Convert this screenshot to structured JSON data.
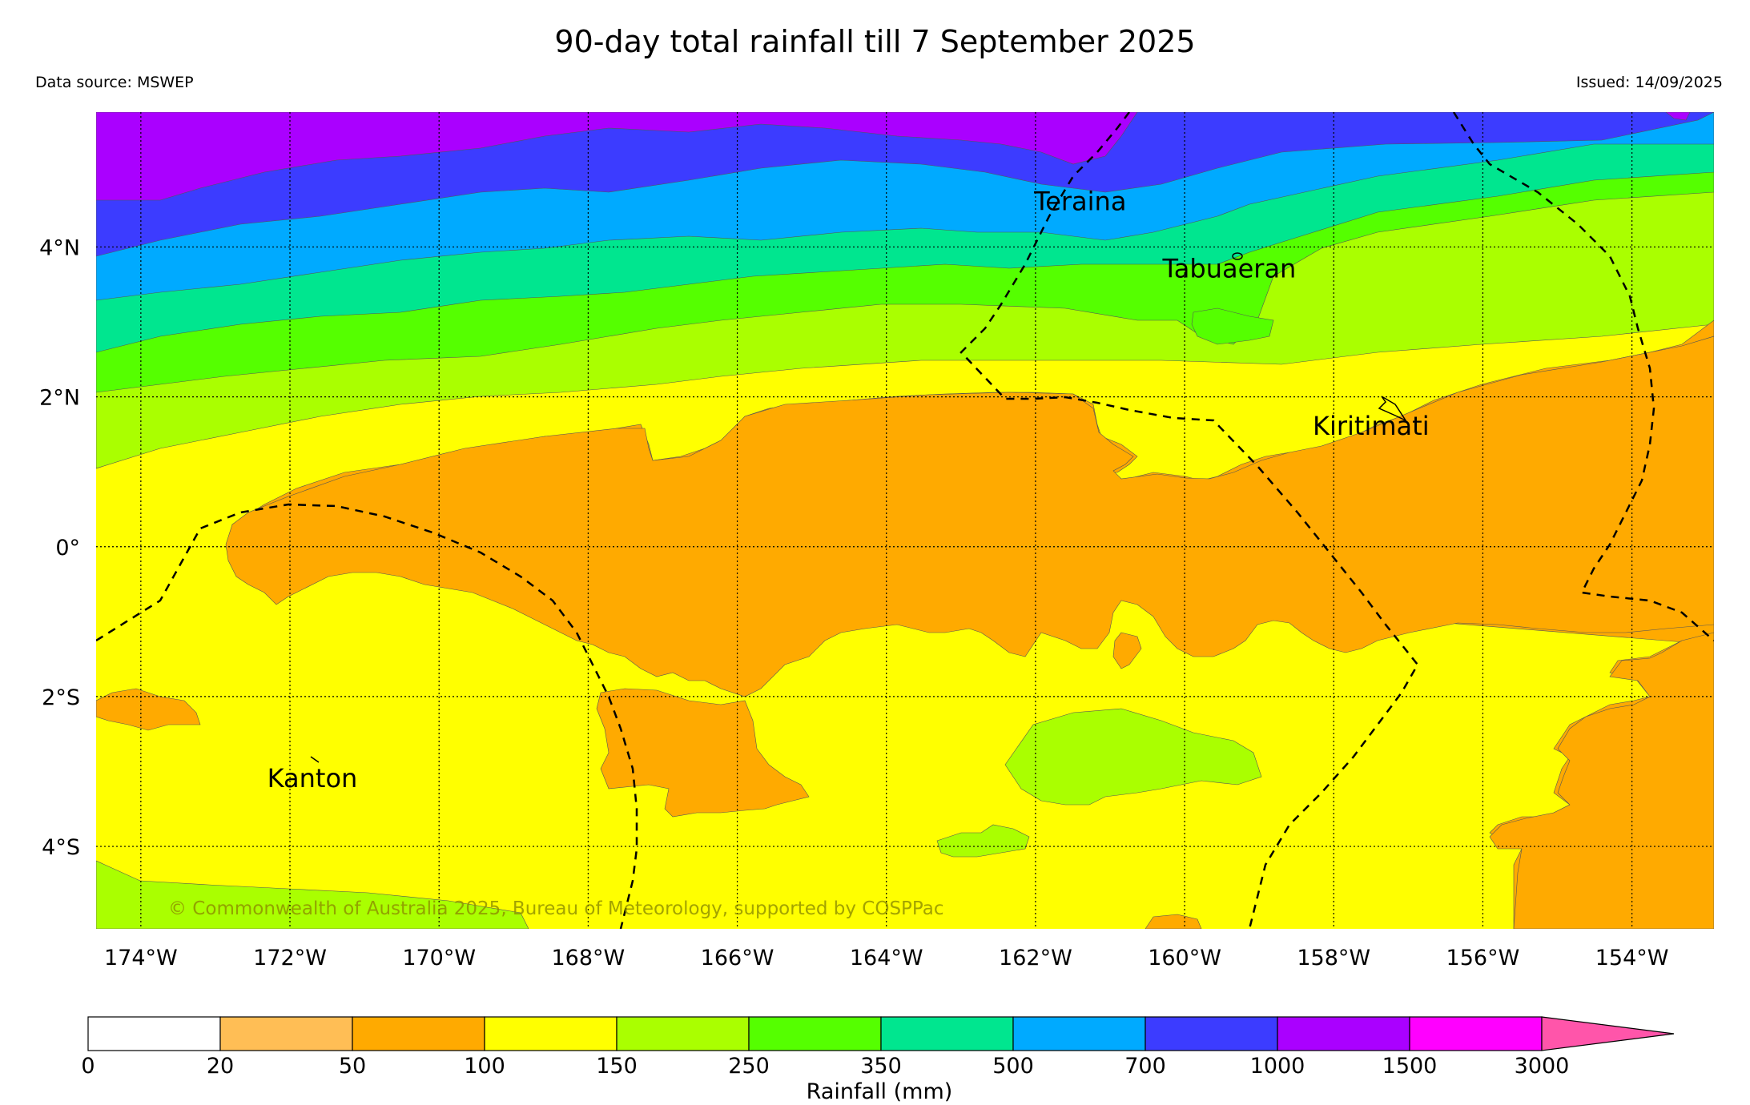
{
  "header": {
    "title": "90-day total rainfall till 7 September 2025",
    "source": "Data source: MSWEP",
    "issued": "Issued: 14/09/2025"
  },
  "map": {
    "lon_range": [
      -174.6,
      -152.9
    ],
    "lat_range": [
      -5.1,
      5.8
    ],
    "lat_ticks": [
      {
        "value": 4,
        "label": "4°N"
      },
      {
        "value": 2,
        "label": "2°N"
      },
      {
        "value": 0,
        "label": "0°"
      },
      {
        "value": -2,
        "label": "2°S"
      },
      {
        "value": -4,
        "label": "4°S"
      }
    ],
    "lon_ticks": [
      {
        "value": -174,
        "label": "174°W"
      },
      {
        "value": -172,
        "label": "172°W"
      },
      {
        "value": -170,
        "label": "170°W"
      },
      {
        "value": -168,
        "label": "168°W"
      },
      {
        "value": -166,
        "label": "166°W"
      },
      {
        "value": -164,
        "label": "164°W"
      },
      {
        "value": -162,
        "label": "162°W"
      },
      {
        "value": -160,
        "label": "160°W"
      },
      {
        "value": -158,
        "label": "158°W"
      },
      {
        "value": -156,
        "label": "156°W"
      },
      {
        "value": -154,
        "label": "154°W"
      }
    ],
    "places": [
      {
        "name": "Teraina",
        "lon": -161.4,
        "lat": 4.6
      },
      {
        "name": "Tabuaeran",
        "lon": -159.4,
        "lat": 3.7
      },
      {
        "name": "Kiritimati",
        "lon": -157.5,
        "lat": 1.6
      },
      {
        "name": "Kanton",
        "lon": -171.7,
        "lat": -3.1
      }
    ],
    "copyright": "© Commonwealth of Australia 2025, Bureau of Meteorology, supported by COSPPac",
    "colors": {
      "c50_100": "#ffaa00",
      "c100_150": "#ffff00",
      "c150_250": "#aaff00",
      "c250_350": "#55ff00",
      "c350_500": "#00e68f",
      "c500_700": "#00aaff",
      "c700_1000": "#3c3cff",
      "c1000_1500": "#aa00ff"
    }
  },
  "colorbar": {
    "label": "Rainfall (mm)",
    "ticks": [
      "0",
      "20",
      "50",
      "100",
      "150",
      "250",
      "350",
      "500",
      "700",
      "1000",
      "1500",
      "3000"
    ],
    "colors": [
      "#ffffff",
      "#ffbe55",
      "#ffaa00",
      "#ffff00",
      "#aaff00",
      "#55ff00",
      "#00e68f",
      "#00aaff",
      "#3c3cff",
      "#aa00ff",
      "#ff00ff"
    ],
    "extend_color": "#ff55aa"
  }
}
